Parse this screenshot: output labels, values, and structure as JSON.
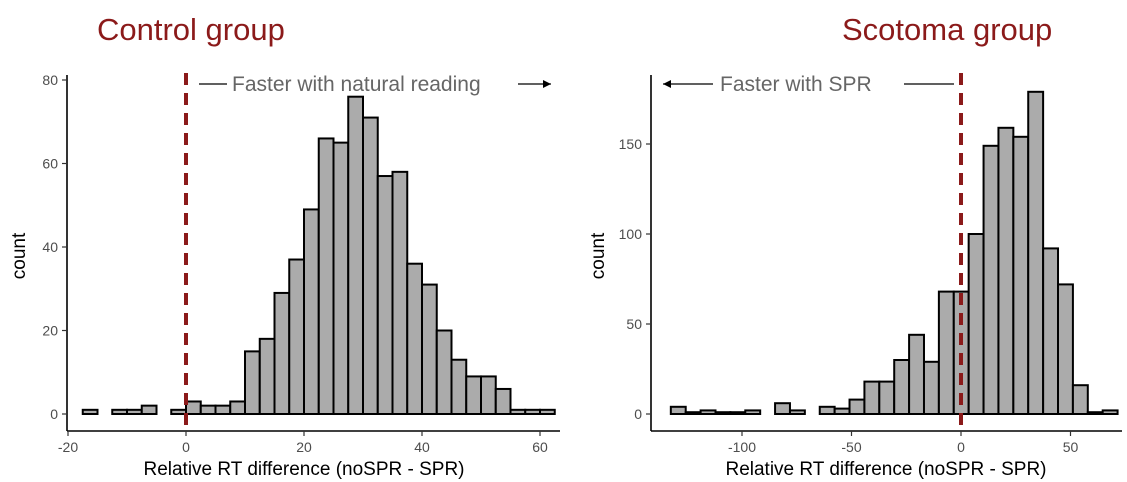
{
  "colors": {
    "title": "#8B1A1A",
    "bar_fill": "#ABABAB",
    "bar_stroke": "#000000",
    "reference_line": "#8B1A1A",
    "annotation": "#666666"
  },
  "chart_data": [
    {
      "type": "bar",
      "title": "Control group",
      "xlabel": "Relative RT difference (noSPR - SPR)",
      "ylabel": "count",
      "xlim": [
        -20,
        62.5
      ],
      "ylim": [
        0,
        80
      ],
      "x_ticks": [
        -20,
        0,
        20,
        40,
        60
      ],
      "y_ticks": [
        0,
        20,
        40,
        60,
        80
      ],
      "x_tick_labels": [
        "-20",
        "0",
        "20",
        "40",
        "60"
      ],
      "y_tick_labels": [
        "0",
        "20",
        "40",
        "60",
        "80"
      ],
      "grid": false,
      "reference_line": {
        "x": 0,
        "style": "dashed"
      },
      "annotation": {
        "text": "Faster with natural reading",
        "arrow_direction": "right"
      },
      "bins": [
        {
          "start": -17.5,
          "end": -15,
          "count": 1
        },
        {
          "start": -15,
          "end": -12.5,
          "count": 0
        },
        {
          "start": -12.5,
          "end": -10,
          "count": 1
        },
        {
          "start": -10,
          "end": -7.5,
          "count": 1
        },
        {
          "start": -7.5,
          "end": -5,
          "count": 2
        },
        {
          "start": -5,
          "end": -2.5,
          "count": 0
        },
        {
          "start": -2.5,
          "end": 0,
          "count": 1
        },
        {
          "start": 0,
          "end": 2.5,
          "count": 3
        },
        {
          "start": 2.5,
          "end": 5,
          "count": 2
        },
        {
          "start": 5,
          "end": 7.5,
          "count": 2
        },
        {
          "start": 7.5,
          "end": 10,
          "count": 3
        },
        {
          "start": 10,
          "end": 12.5,
          "count": 15
        },
        {
          "start": 12.5,
          "end": 15,
          "count": 18
        },
        {
          "start": 15,
          "end": 17.5,
          "count": 29
        },
        {
          "start": 17.5,
          "end": 20,
          "count": 37
        },
        {
          "start": 20,
          "end": 22.5,
          "count": 49
        },
        {
          "start": 22.5,
          "end": 25,
          "count": 66
        },
        {
          "start": 25,
          "end": 27.5,
          "count": 65
        },
        {
          "start": 27.5,
          "end": 30,
          "count": 76
        },
        {
          "start": 30,
          "end": 32.5,
          "count": 71
        },
        {
          "start": 32.5,
          "end": 35,
          "count": 57
        },
        {
          "start": 35,
          "end": 37.5,
          "count": 58
        },
        {
          "start": 37.5,
          "end": 40,
          "count": 36
        },
        {
          "start": 40,
          "end": 42.5,
          "count": 31
        },
        {
          "start": 42.5,
          "end": 45,
          "count": 20
        },
        {
          "start": 45,
          "end": 47.5,
          "count": 13
        },
        {
          "start": 47.5,
          "end": 50,
          "count": 9
        },
        {
          "start": 50,
          "end": 52.5,
          "count": 9
        },
        {
          "start": 52.5,
          "end": 55,
          "count": 6
        },
        {
          "start": 55,
          "end": 57.5,
          "count": 1
        },
        {
          "start": 57.5,
          "end": 60,
          "count": 1
        },
        {
          "start": 60,
          "end": 62.5,
          "count": 1
        }
      ]
    },
    {
      "type": "bar",
      "title": "Scotoma group",
      "xlabel": "Relative RT difference (noSPR - SPR)",
      "ylabel": "count",
      "xlim": [
        -132,
        72
      ],
      "ylim": [
        0,
        180
      ],
      "x_ticks": [
        -100,
        -50,
        0,
        50
      ],
      "y_ticks": [
        0,
        50,
        100,
        150
      ],
      "x_tick_labels": [
        "-100",
        "-50",
        "0",
        "50"
      ],
      "y_tick_labels": [
        "0",
        "50",
        "100",
        "150"
      ],
      "grid": false,
      "reference_line": {
        "x": 0,
        "style": "dashed"
      },
      "annotation": {
        "text": "Faster with SPR",
        "arrow_direction": "left"
      },
      "bins": [
        {
          "start": -132.5,
          "end": -125.7,
          "count": 4
        },
        {
          "start": -125.7,
          "end": -118.9,
          "count": 1
        },
        {
          "start": -118.9,
          "end": -112.1,
          "count": 2
        },
        {
          "start": -112.1,
          "end": -105.3,
          "count": 1
        },
        {
          "start": -105.3,
          "end": -98.5,
          "count": 1
        },
        {
          "start": -98.5,
          "end": -91.7,
          "count": 2
        },
        {
          "start": -91.7,
          "end": -84.9,
          "count": 0
        },
        {
          "start": -84.9,
          "end": -78.1,
          "count": 6
        },
        {
          "start": -78.1,
          "end": -71.3,
          "count": 2
        },
        {
          "start": -71.3,
          "end": -64.5,
          "count": 0
        },
        {
          "start": -64.5,
          "end": -57.7,
          "count": 4
        },
        {
          "start": -57.7,
          "end": -50.9,
          "count": 3
        },
        {
          "start": -50.9,
          "end": -44.1,
          "count": 8
        },
        {
          "start": -44.1,
          "end": -37.3,
          "count": 18
        },
        {
          "start": -37.3,
          "end": -30.5,
          "count": 18
        },
        {
          "start": -30.5,
          "end": -23.7,
          "count": 30
        },
        {
          "start": -23.7,
          "end": -16.9,
          "count": 44
        },
        {
          "start": -16.9,
          "end": -10.1,
          "count": 29
        },
        {
          "start": -10.1,
          "end": -3.3,
          "count": 68
        },
        {
          "start": -3.3,
          "end": 3.5,
          "count": 68
        },
        {
          "start": 3.5,
          "end": 10.3,
          "count": 100
        },
        {
          "start": 10.3,
          "end": 17.1,
          "count": 149
        },
        {
          "start": 17.1,
          "end": 23.9,
          "count": 159
        },
        {
          "start": 23.9,
          "end": 30.7,
          "count": 154
        },
        {
          "start": 30.7,
          "end": 37.5,
          "count": 179
        },
        {
          "start": 37.5,
          "end": 44.3,
          "count": 92
        },
        {
          "start": 44.3,
          "end": 51.1,
          "count": 72
        },
        {
          "start": 51.1,
          "end": 57.9,
          "count": 16
        },
        {
          "start": 57.9,
          "end": 64.7,
          "count": 1
        },
        {
          "start": 64.7,
          "end": 71.5,
          "count": 2
        }
      ]
    }
  ]
}
